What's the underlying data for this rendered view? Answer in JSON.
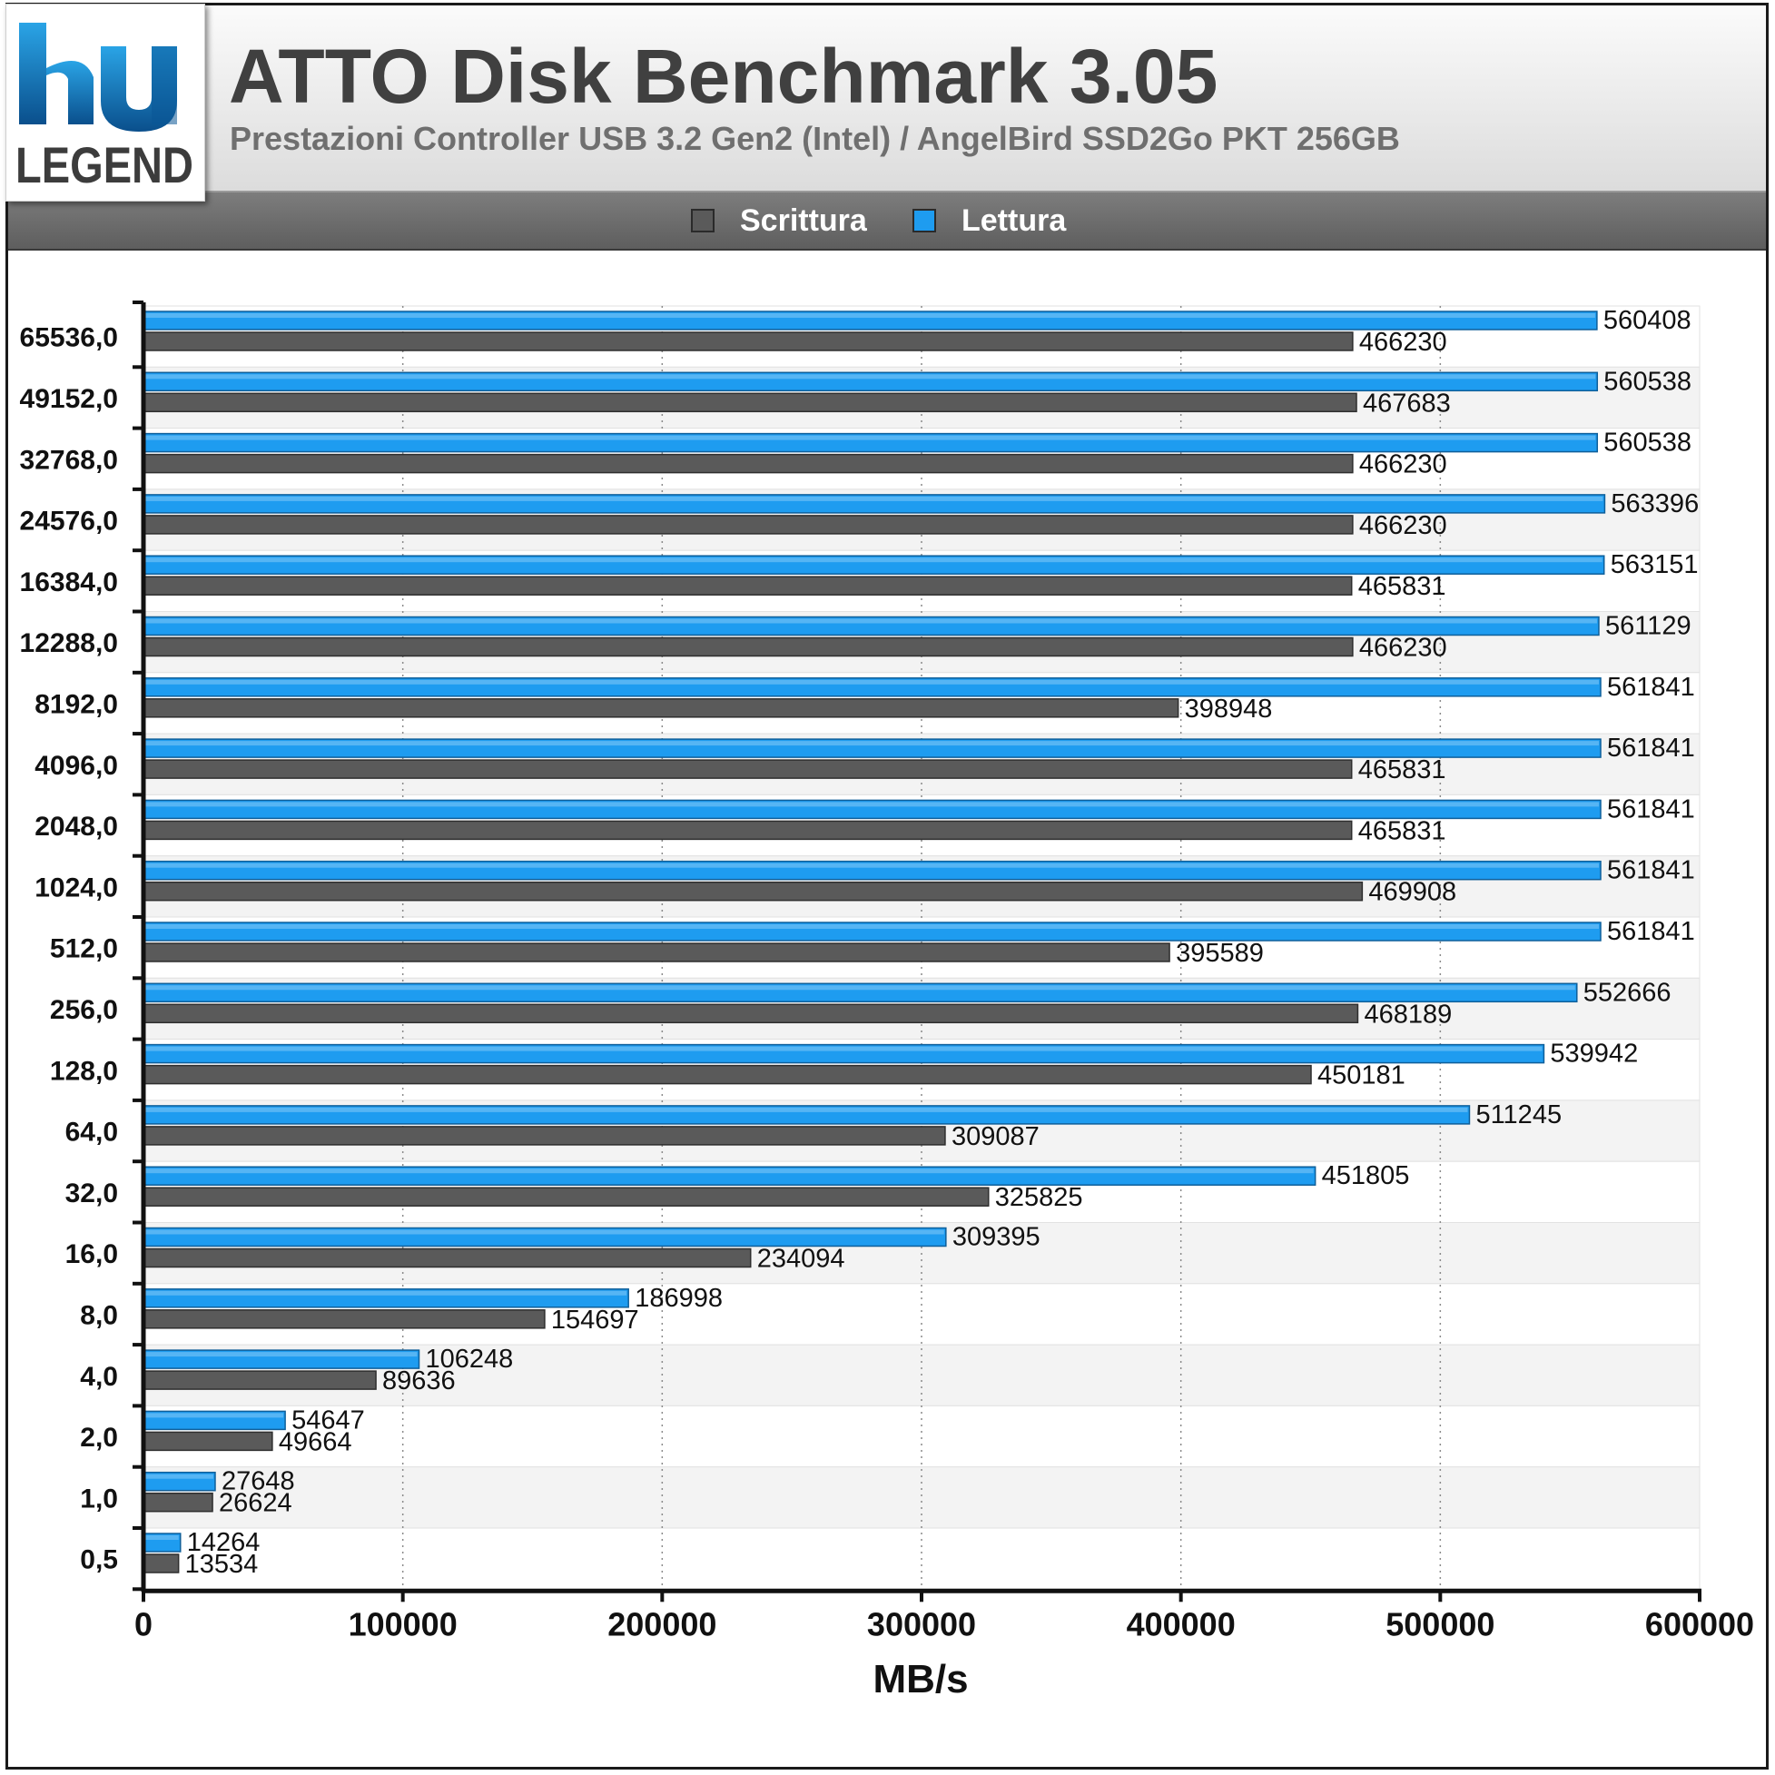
{
  "header": {
    "logo_text": "hw LEGEND",
    "title": "ATTO Disk Benchmark 3.05",
    "subtitle": "Prestazioni Controller USB 3.2 Gen2 (Intel) / AngelBird SSD2Go PKT 256GB"
  },
  "colors": {
    "write": "#5a5a5a",
    "read": "#1e9cf0",
    "band_odd": "#f3f3f3",
    "band_even": "#ffffff"
  },
  "chart_data": {
    "type": "bar",
    "orientation": "horizontal",
    "title": "ATTO Disk Benchmark 3.05",
    "subtitle": "Prestazioni Controller USB 3.2 Gen2 (Intel) / AngelBird SSD2Go PKT 256GB",
    "xlabel": "MB/s",
    "ylabel": "",
    "xlim": [
      0,
      600000
    ],
    "xticks": [
      "0",
      "100000",
      "200000",
      "300000",
      "400000",
      "500000",
      "600000"
    ],
    "grid": "vertical dotted",
    "legend_position": "top",
    "categories": [
      "65536,0",
      "49152,0",
      "32768,0",
      "24576,0",
      "16384,0",
      "12288,0",
      "8192,0",
      "4096,0",
      "2048,0",
      "1024,0",
      "512,0",
      "256,0",
      "128,0",
      "64,0",
      "32,0",
      "16,0",
      "8,0",
      "4,0",
      "2,0",
      "1,0",
      "0,5"
    ],
    "series": [
      {
        "name": "Scrittura",
        "color": "#5a5a5a",
        "values": [
          466230,
          467683,
          466230,
          466230,
          465831,
          466230,
          398948,
          465831,
          465831,
          469908,
          395589,
          468189,
          450181,
          309087,
          325825,
          234094,
          154697,
          89636,
          49664,
          26624,
          13534
        ]
      },
      {
        "name": "Lettura",
        "color": "#1e9cf0",
        "values": [
          560408,
          560538,
          560538,
          563396,
          563151,
          561129,
          561841,
          561841,
          561841,
          561841,
          561841,
          552666,
          539942,
          511245,
          451805,
          309395,
          186998,
          106248,
          54647,
          27648,
          14264
        ]
      }
    ]
  }
}
